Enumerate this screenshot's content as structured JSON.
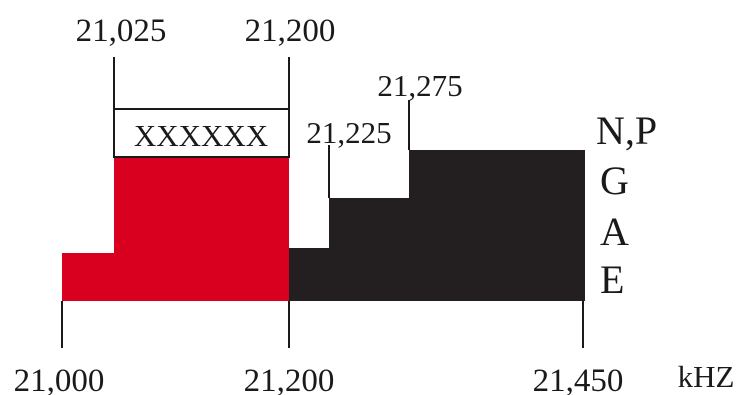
{
  "band_chart": {
    "colors": {
      "red_segment": "#d8001e",
      "black_segment": "#231f20",
      "text": "#1a1a1a",
      "box_fill": "#ffffff"
    },
    "top_labels": {
      "f21025": "21,025",
      "f21200": "21,200",
      "f21225": "21,225",
      "f21275": "21,275"
    },
    "bottom_labels": {
      "f21000": "21,000",
      "f21200": "21,200",
      "f21450": "21,450"
    },
    "unit": "kHZ",
    "box_text": "XXXXXX",
    "class_labels": [
      "N,P",
      "G",
      "A",
      "E"
    ]
  }
}
